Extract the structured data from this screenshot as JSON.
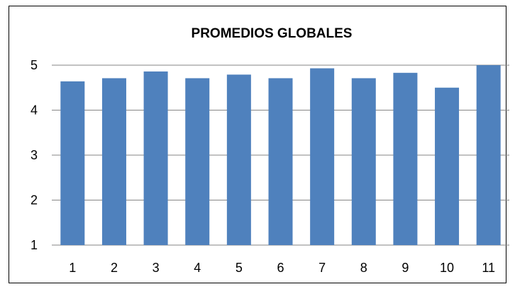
{
  "chart_data": {
    "type": "bar",
    "title": "PROMEDIOS GLOBALES",
    "xlabel": "",
    "ylabel": "",
    "categories": [
      "1",
      "2",
      "3",
      "4",
      "5",
      "6",
      "7",
      "8",
      "9",
      "10",
      "11"
    ],
    "values": [
      4.64,
      4.71,
      4.86,
      4.71,
      4.79,
      4.71,
      4.93,
      4.71,
      4.83,
      4.5,
      5.0
    ],
    "ylim": [
      1,
      5
    ],
    "yticks": [
      "1",
      "2",
      "3",
      "4",
      "5"
    ],
    "grid": true,
    "legend": "none",
    "colors": {
      "bar": "#4f81bd",
      "grid": "#868686",
      "axis": "#868686"
    }
  }
}
